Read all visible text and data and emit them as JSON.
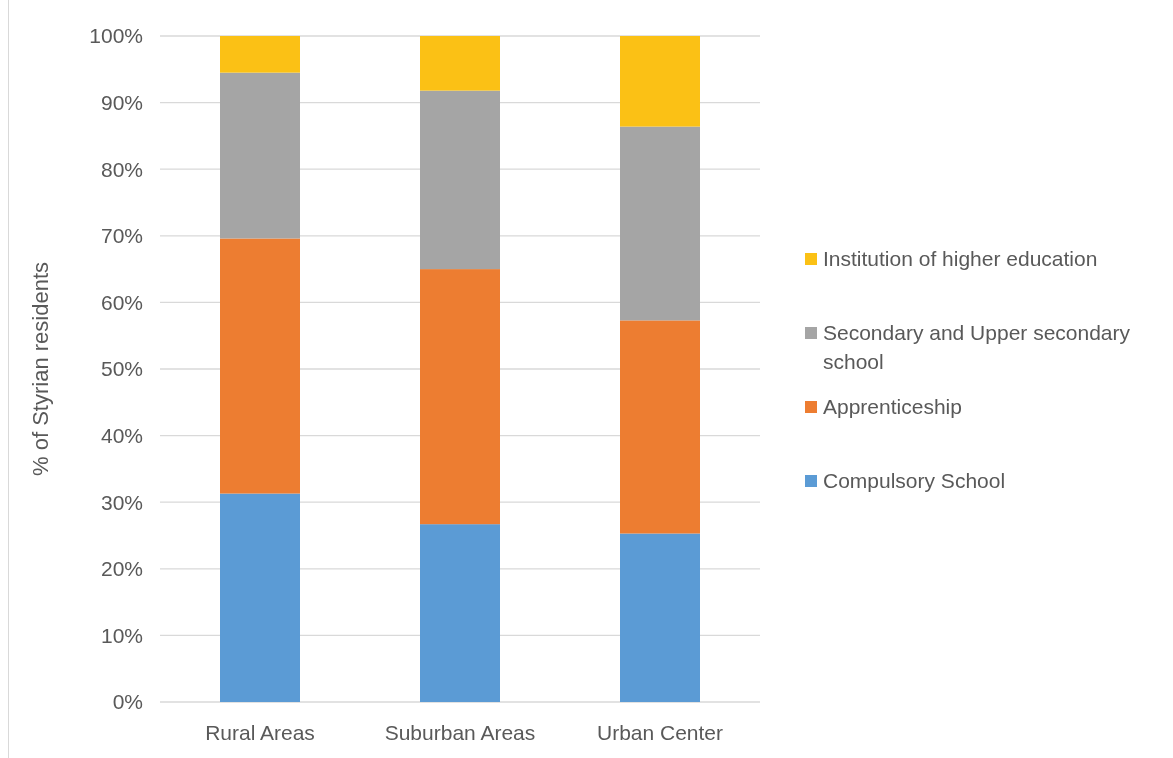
{
  "chart_data": {
    "type": "bar",
    "stacked": true,
    "ylabel": "% of Styrian residents",
    "categories": [
      "Rural Areas",
      "Suburban Areas",
      "Urban Center"
    ],
    "series": [
      {
        "name": "Compulsory School",
        "color": "#5b9bd5",
        "values": [
          31.3,
          26.7,
          25.3
        ]
      },
      {
        "name": "Apprenticeship",
        "color": "#ed7d31",
        "values": [
          38.3,
          38.3,
          32.0
        ]
      },
      {
        "name": "Secondary and Upper secondary school",
        "color": "#a5a5a5",
        "values": [
          24.9,
          26.8,
          29.1
        ]
      },
      {
        "name": "Institution of higher education",
        "color": "#fbc115",
        "values": [
          5.5,
          8.2,
          13.6
        ]
      }
    ],
    "ylim": [
      0,
      100
    ],
    "yticks": [
      {
        "value": 0,
        "label": "0%"
      },
      {
        "value": 10,
        "label": "10%"
      },
      {
        "value": 20,
        "label": "20%"
      },
      {
        "value": 30,
        "label": "30%"
      },
      {
        "value": 40,
        "label": "40%"
      },
      {
        "value": 50,
        "label": "50%"
      },
      {
        "value": 60,
        "label": "60%"
      },
      {
        "value": 70,
        "label": "70%"
      },
      {
        "value": 80,
        "label": "80%"
      },
      {
        "value": 90,
        "label": "90%"
      },
      {
        "value": 100,
        "label": "100%"
      }
    ],
    "grid": "y",
    "legend": "right"
  }
}
